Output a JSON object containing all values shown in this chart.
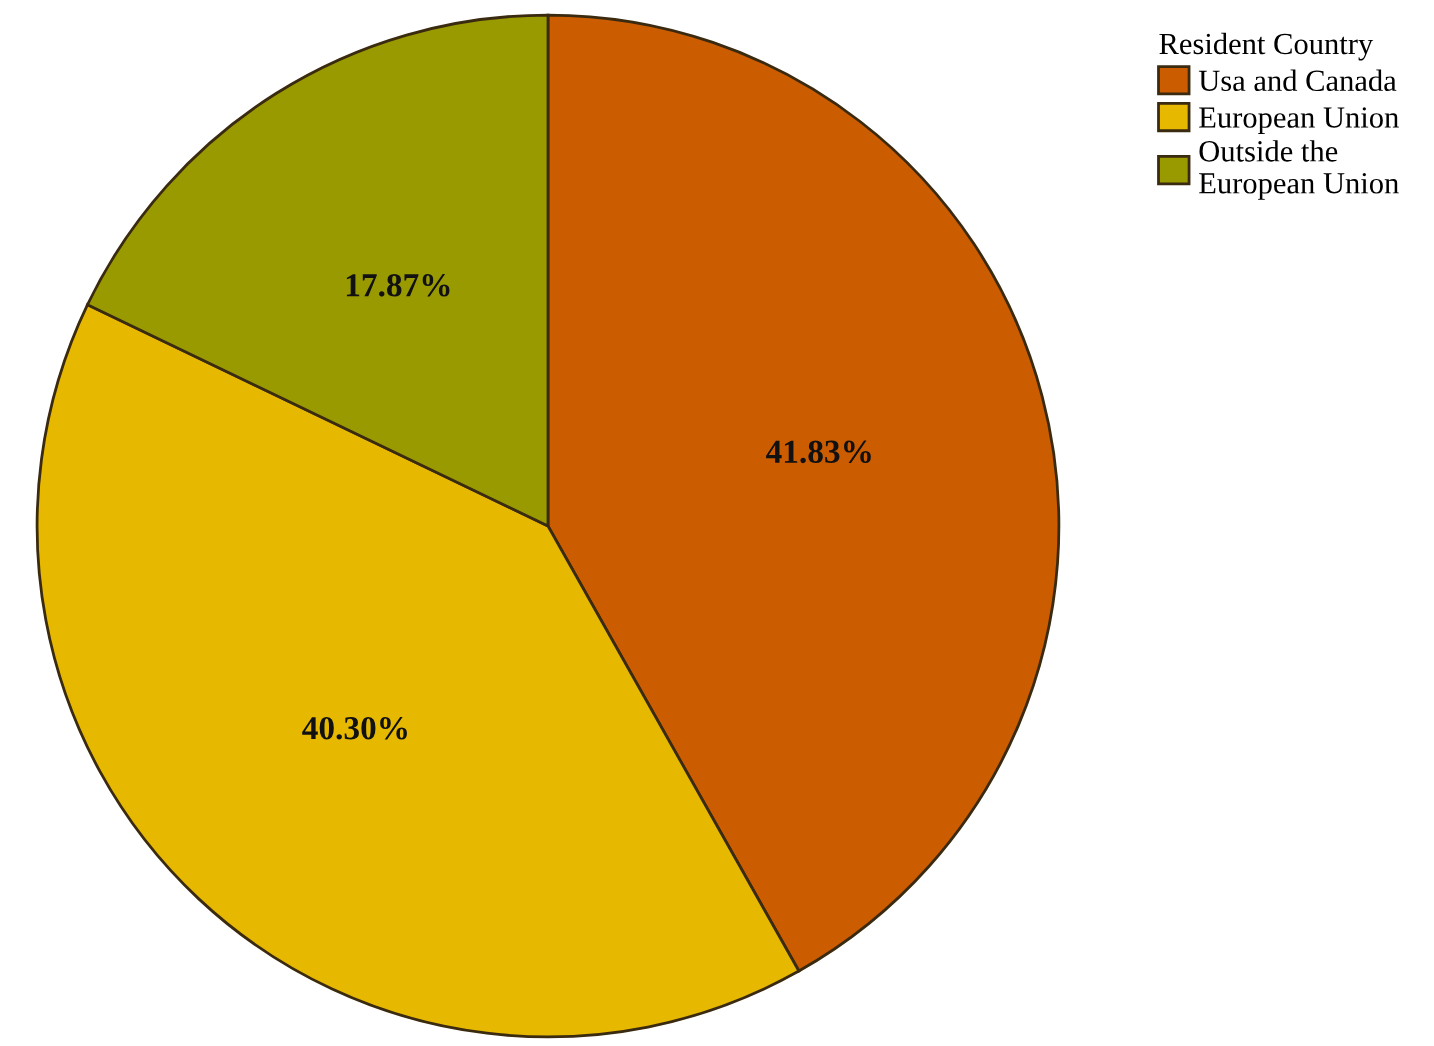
{
  "chart_data": {
    "type": "pie",
    "legend_title": "Resident Country",
    "legend": "top right",
    "categories": [
      "Usa and Canada",
      "European Union",
      "Outside the\nEuropean Union"
    ],
    "values": [
      41.83,
      40.3,
      17.87
    ],
    "colors": [
      "#cc5c00",
      "#e6b800",
      "#999900"
    ],
    "value_labels": [
      "41.83%",
      "40.30%",
      "17.87%"
    ]
  }
}
